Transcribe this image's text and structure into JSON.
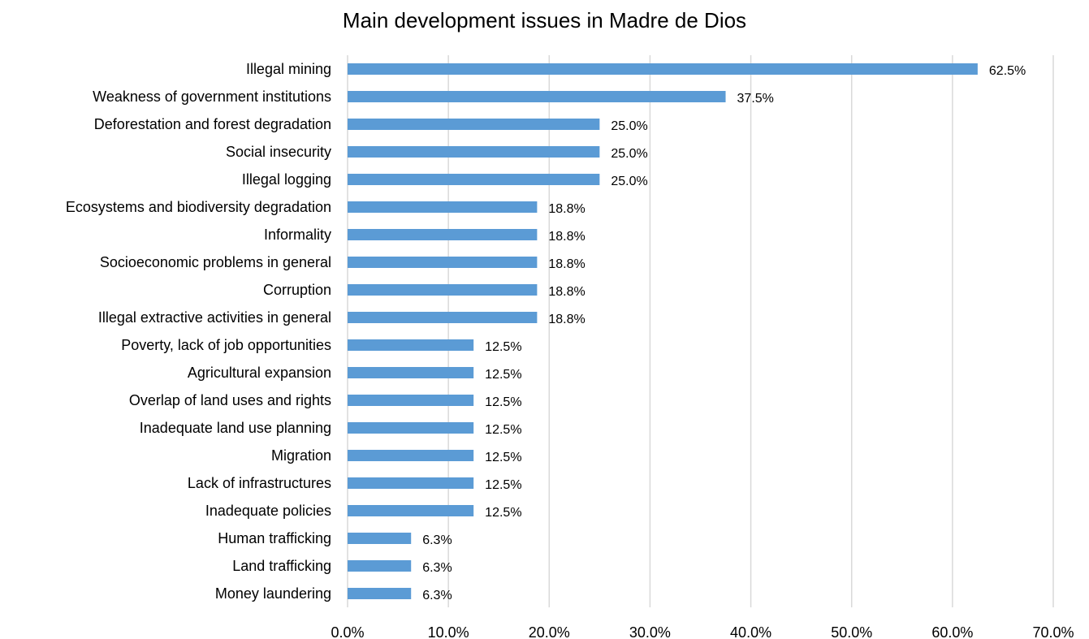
{
  "chart_data": {
    "type": "bar",
    "orientation": "horizontal",
    "title": "Main development issues in Madre de Dios",
    "xlabel": "",
    "ylabel": "",
    "categories": [
      "Illegal mining",
      "Weakness of government institutions",
      "Deforestation and forest degradation",
      "Social insecurity",
      "Illegal logging",
      "Ecosystems and biodiversity degradation",
      "Informality",
      "Socioeconomic problems in general",
      "Corruption",
      "Illegal extractive activities in general",
      "Poverty, lack of job opportunities",
      "Agricultural expansion",
      "Overlap of land uses and rights",
      "Inadequate land use planning",
      "Migration",
      "Lack of infrastructures",
      "Inadequate policies",
      "Human trafficking",
      "Land trafficking",
      "Money laundering"
    ],
    "values": [
      62.5,
      37.5,
      25.0,
      25.0,
      25.0,
      18.8,
      18.8,
      18.8,
      18.8,
      18.8,
      12.5,
      12.5,
      12.5,
      12.5,
      12.5,
      12.5,
      12.5,
      6.3,
      6.3,
      6.3
    ],
    "data_labels": [
      "62.5%",
      "37.5%",
      "25.0%",
      "25.0%",
      "25.0%",
      "18.8%",
      "18.8%",
      "18.8%",
      "18.8%",
      "18.8%",
      "12.5%",
      "12.5%",
      "12.5%",
      "12.5%",
      "12.5%",
      "12.5%",
      "12.5%",
      "6.3%",
      "6.3%",
      "6.3%"
    ],
    "xlim": [
      0,
      70
    ],
    "xticks": [
      0,
      10,
      20,
      30,
      40,
      50,
      60,
      70
    ],
    "xtick_labels": [
      "0.0%",
      "10.0%",
      "20.0%",
      "30.0%",
      "40.0%",
      "50.0%",
      "60.0%",
      "70.0%"
    ],
    "grid": "vertical",
    "legend": "none",
    "bar_color": "#5b9bd5",
    "grid_color": "#d9d9d9"
  }
}
